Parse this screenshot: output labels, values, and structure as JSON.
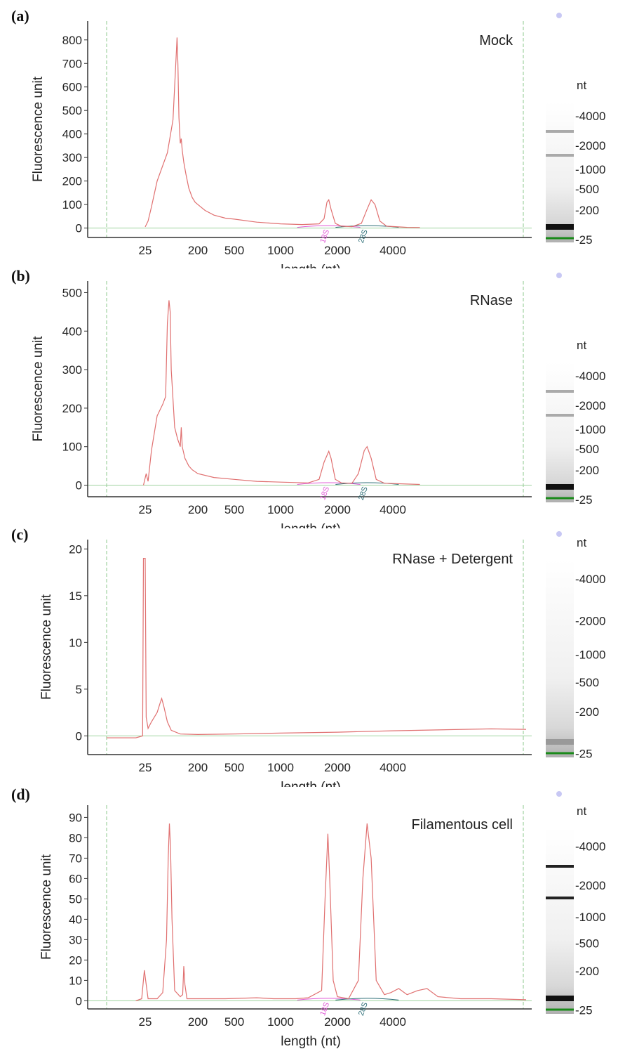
{
  "chart_data": [
    {
      "type": "line",
      "panel_label": "(a)",
      "title": "Mock",
      "xlabel": "length (nt)",
      "ylabel": "Fluorescence unit",
      "x_ticks": [
        "25",
        "200",
        "500",
        "1000",
        "2000",
        "4000"
      ],
      "y_ticks": [
        0,
        100,
        200,
        300,
        400,
        500,
        600,
        700,
        800
      ],
      "ylim": [
        -40,
        880
      ],
      "peak_markers": [
        "18S",
        "28S"
      ],
      "series": [
        {
          "points": [
            [
              25,
              5
            ],
            [
              28,
              30
            ],
            [
              32,
              90
            ],
            [
              40,
              200
            ],
            [
              60,
              320
            ],
            [
              75,
              460
            ],
            [
              86,
              760
            ],
            [
              88,
              810
            ],
            [
              91,
              700
            ],
            [
              95,
              470
            ],
            [
              100,
              360
            ],
            [
              104,
              380
            ],
            [
              108,
              330
            ],
            [
              115,
              280
            ],
            [
              125,
              230
            ],
            [
              140,
              170
            ],
            [
              160,
              130
            ],
            [
              180,
              110
            ],
            [
              200,
              100
            ],
            [
              240,
              75
            ],
            [
              300,
              55
            ],
            [
              400,
              42
            ],
            [
              500,
              38
            ],
            [
              700,
              25
            ],
            [
              1000,
              18
            ],
            [
              1300,
              15
            ],
            [
              1600,
              18
            ],
            [
              1700,
              40
            ],
            [
              1760,
              110
            ],
            [
              1800,
              120
            ],
            [
              1850,
              80
            ],
            [
              1950,
              20
            ],
            [
              2100,
              8
            ],
            [
              2400,
              6
            ],
            [
              2700,
              20
            ],
            [
              2900,
              80
            ],
            [
              3050,
              120
            ],
            [
              3200,
              100
            ],
            [
              3400,
              30
            ],
            [
              3700,
              8
            ],
            [
              4500,
              3
            ],
            [
              5000,
              2
            ]
          ]
        }
      ],
      "gel": {
        "unit": "nt",
        "labels": [
          "4000",
          "2000",
          "1000",
          "500",
          "200",
          "25"
        ]
      }
    },
    {
      "type": "line",
      "panel_label": "(b)",
      "title": "RNase",
      "xlabel": "length (nt)",
      "ylabel": "Fluorescence unit",
      "x_ticks": [
        "25",
        "200",
        "500",
        "1000",
        "2000",
        "4000"
      ],
      "y_ticks": [
        0,
        100,
        200,
        300,
        400,
        500
      ],
      "ylim": [
        -30,
        530
      ],
      "peak_markers": [
        "18S",
        "28S"
      ],
      "series": [
        {
          "points": [
            [
              24,
              0
            ],
            [
              26,
              30
            ],
            [
              28,
              10
            ],
            [
              32,
              90
            ],
            [
              40,
              180
            ],
            [
              50,
              210
            ],
            [
              56,
              230
            ],
            [
              60,
              420
            ],
            [
              64,
              480
            ],
            [
              67,
              450
            ],
            [
              70,
              300
            ],
            [
              80,
              150
            ],
            [
              90,
              120
            ],
            [
              100,
              100
            ],
            [
              104,
              150
            ],
            [
              108,
              100
            ],
            [
              120,
              70
            ],
            [
              140,
              50
            ],
            [
              160,
              40
            ],
            [
              200,
              30
            ],
            [
              300,
              20
            ],
            [
              500,
              15
            ],
            [
              700,
              10
            ],
            [
              1000,
              8
            ],
            [
              1400,
              6
            ],
            [
              1600,
              15
            ],
            [
              1700,
              60
            ],
            [
              1800,
              88
            ],
            [
              1850,
              70
            ],
            [
              1950,
              15
            ],
            [
              2100,
              6
            ],
            [
              2400,
              5
            ],
            [
              2600,
              30
            ],
            [
              2800,
              90
            ],
            [
              2900,
              100
            ],
            [
              3050,
              70
            ],
            [
              3250,
              15
            ],
            [
              3600,
              5
            ],
            [
              5000,
              2
            ]
          ]
        }
      ],
      "gel": {
        "unit": "nt",
        "labels": [
          "4000",
          "2000",
          "1000",
          "500",
          "200",
          "25"
        ]
      }
    },
    {
      "type": "line",
      "panel_label": "(c)",
      "title": "RNase + Detergent",
      "xlabel": "length (nt)",
      "ylabel": "Fluorescence unit",
      "x_ticks": [
        "25",
        "200",
        "500",
        "1000",
        "2000",
        "4000"
      ],
      "y_ticks": [
        0,
        5,
        10,
        15,
        20
      ],
      "ylim": [
        -2,
        21
      ],
      "peak_markers": [],
      "series": [
        {
          "points": [
            [
              10,
              -0.2
            ],
            [
              15,
              -0.2
            ],
            [
              20,
              -0.2
            ],
            [
              23.5,
              0
            ],
            [
              24,
              19
            ],
            [
              25,
              19
            ],
            [
              26,
              2
            ],
            [
              28,
              0.8
            ],
            [
              32,
              1.5
            ],
            [
              40,
              2.5
            ],
            [
              45,
              3.5
            ],
            [
              48,
              4
            ],
            [
              52,
              3.2
            ],
            [
              60,
              1.5
            ],
            [
              70,
              0.6
            ],
            [
              100,
              0.2
            ],
            [
              200,
              0.15
            ],
            [
              500,
              0.2
            ],
            [
              1000,
              0.3
            ],
            [
              2000,
              0.4
            ],
            [
              4000,
              0.55
            ],
            [
              9000,
              0.75
            ],
            [
              12000,
              0.7
            ]
          ]
        }
      ],
      "gel": {
        "unit": "nt",
        "labels": [
          "4000",
          "2000",
          "1000",
          "500",
          "200",
          "25"
        ]
      }
    },
    {
      "type": "line",
      "panel_label": "(d)",
      "title": "Filamentous cell",
      "xlabel": "length (nt)",
      "ylabel": "Fluorescence unit",
      "x_ticks": [
        "25",
        "200",
        "500",
        "1000",
        "2000",
        "4000"
      ],
      "y_ticks": [
        0,
        10,
        20,
        30,
        40,
        50,
        60,
        70,
        80,
        90
      ],
      "ylim": [
        -4,
        96
      ],
      "peak_markers": [
        "18S",
        "28S"
      ],
      "series": [
        {
          "points": [
            [
              20,
              0
            ],
            [
              23,
              1
            ],
            [
              24.5,
              15
            ],
            [
              26,
              8
            ],
            [
              28,
              1
            ],
            [
              40,
              1
            ],
            [
              50,
              4
            ],
            [
              58,
              30
            ],
            [
              62,
              70
            ],
            [
              65,
              87
            ],
            [
              68,
              75
            ],
            [
              72,
              40
            ],
            [
              80,
              5
            ],
            [
              100,
              2
            ],
            [
              110,
              3
            ],
            [
              115,
              17
            ],
            [
              120,
              8
            ],
            [
              130,
              1
            ],
            [
              200,
              1
            ],
            [
              400,
              1
            ],
            [
              700,
              1.5
            ],
            [
              900,
              1
            ],
            [
              1200,
              1
            ],
            [
              1400,
              1.5
            ],
            [
              1650,
              5
            ],
            [
              1720,
              50
            ],
            [
              1780,
              82
            ],
            [
              1820,
              60
            ],
            [
              1900,
              10
            ],
            [
              2000,
              2
            ],
            [
              2300,
              1
            ],
            [
              2600,
              10
            ],
            [
              2750,
              60
            ],
            [
              2900,
              87
            ],
            [
              3050,
              70
            ],
            [
              3250,
              10
            ],
            [
              3600,
              3
            ],
            [
              3900,
              4
            ],
            [
              4200,
              6
            ],
            [
              4500,
              3
            ],
            [
              4900,
              5
            ],
            [
              5300,
              6
            ],
            [
              5800,
              2
            ],
            [
              7000,
              1
            ],
            [
              9000,
              1
            ],
            [
              12000,
              0.5
            ]
          ]
        }
      ],
      "gel": {
        "unit": "nt",
        "labels": [
          "4000",
          "2000",
          "1000",
          "500",
          "200",
          "25"
        ]
      }
    }
  ]
}
